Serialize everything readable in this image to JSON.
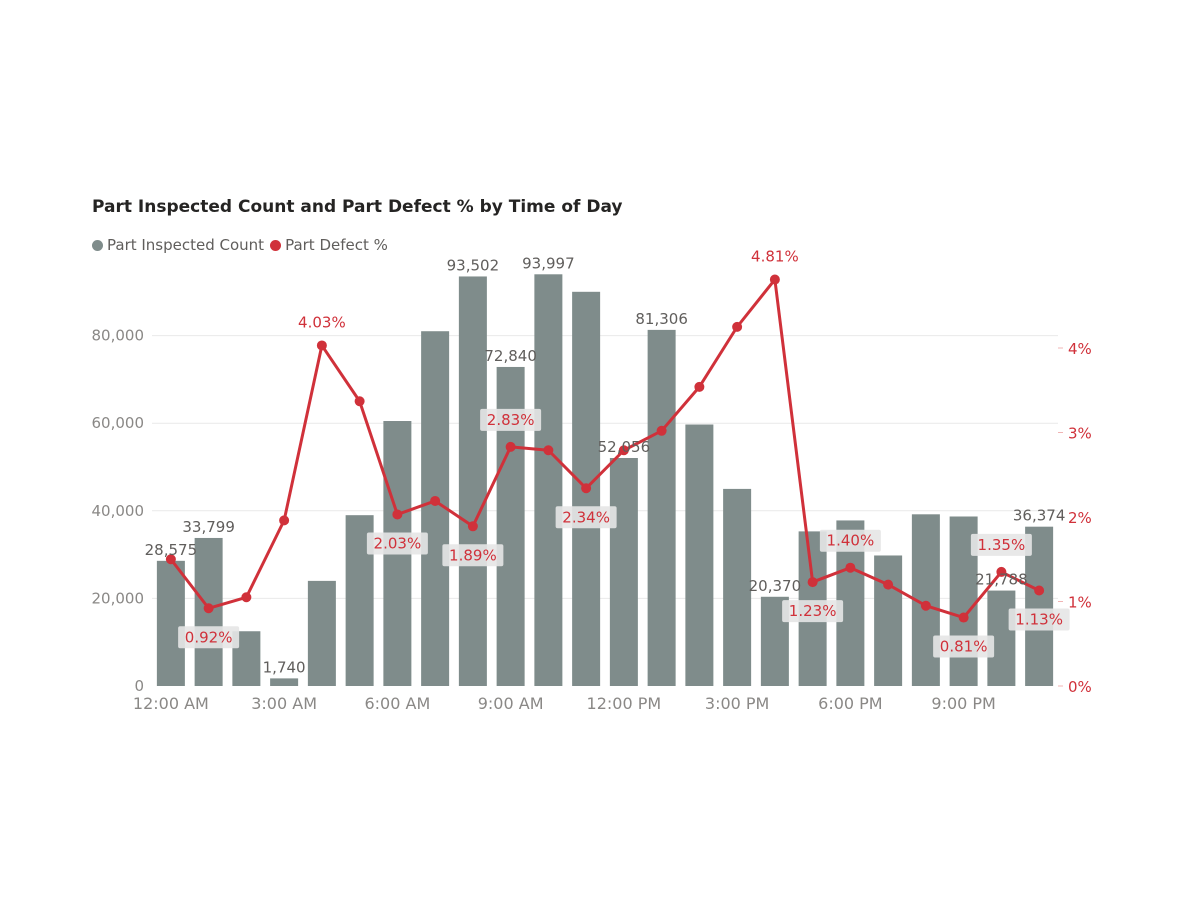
{
  "colors": {
    "bar": "#7f8c8b",
    "line": "#d0313a",
    "grid": "#e9e9e9",
    "axis_text": "#8a8886",
    "label_text": "#605e5c",
    "label_box": "#e6e6e6"
  },
  "legend": [
    {
      "name": "Part Inspected Count",
      "color": "#7f8c8b"
    },
    {
      "name": "Part Defect %",
      "color": "#d0313a"
    }
  ],
  "chart_data": {
    "type": "bar",
    "combo_line": true,
    "title": "Part Inspected Count and Part Defect % by Time of Day",
    "x_tick_labels": [
      "12:00 AM",
      "3:00 AM",
      "6:00 AM",
      "9:00 AM",
      "12:00 PM",
      "3:00 PM",
      "6:00 PM",
      "9:00 PM"
    ],
    "x_tick_every": 3,
    "y_left": {
      "min": 0,
      "max": 100000,
      "ticks": [
        0,
        20000,
        40000,
        60000,
        80000
      ],
      "tick_labels": [
        "0",
        "20,000",
        "40,000",
        "60,000",
        "80,000"
      ]
    },
    "y_right": {
      "min": 0,
      "max": 5.0,
      "ticks": [
        0,
        1,
        2,
        3,
        4
      ],
      "tick_labels": [
        "0%",
        "1%",
        "2%",
        "3%",
        "4%"
      ]
    },
    "grid": true,
    "legend_position": "top-left",
    "series": [
      {
        "name": "Part Inspected Count",
        "type": "bar",
        "axis": "left",
        "values": [
          28575,
          33799,
          12500,
          1740,
          24000,
          39000,
          60500,
          81000,
          93502,
          72840,
          93997,
          90000,
          52056,
          81306,
          59700,
          45000,
          20370,
          35300,
          37800,
          29800,
          39200,
          38700,
          21788,
          36374
        ],
        "labels": [
          "28,575",
          "33,799",
          "",
          "1,740",
          "",
          "",
          "",
          "",
          "93,502",
          "72,840",
          "93,997",
          "",
          "52,056",
          "81,306",
          "",
          "",
          "20,370",
          "",
          "",
          "",
          "",
          "",
          "21,788",
          "36,374"
        ]
      },
      {
        "name": "Part Defect %",
        "type": "line",
        "axis": "right",
        "values": [
          1.5,
          0.92,
          1.05,
          1.96,
          4.03,
          3.37,
          2.03,
          2.19,
          1.89,
          2.83,
          2.79,
          2.34,
          2.79,
          3.02,
          3.54,
          4.25,
          4.81,
          1.23,
          1.4,
          1.2,
          0.95,
          0.81,
          1.35,
          1.13
        ],
        "labels": [
          "",
          "0.92%",
          "",
          "",
          "4.03%",
          "",
          "2.03%",
          "",
          "1.89%",
          "2.83%",
          "",
          "2.34%",
          "",
          "",
          "",
          "",
          "4.81%",
          "1.23%",
          "1.40%",
          "",
          "",
          "0.81%",
          "1.35%",
          "1.13%"
        ]
      }
    ]
  }
}
